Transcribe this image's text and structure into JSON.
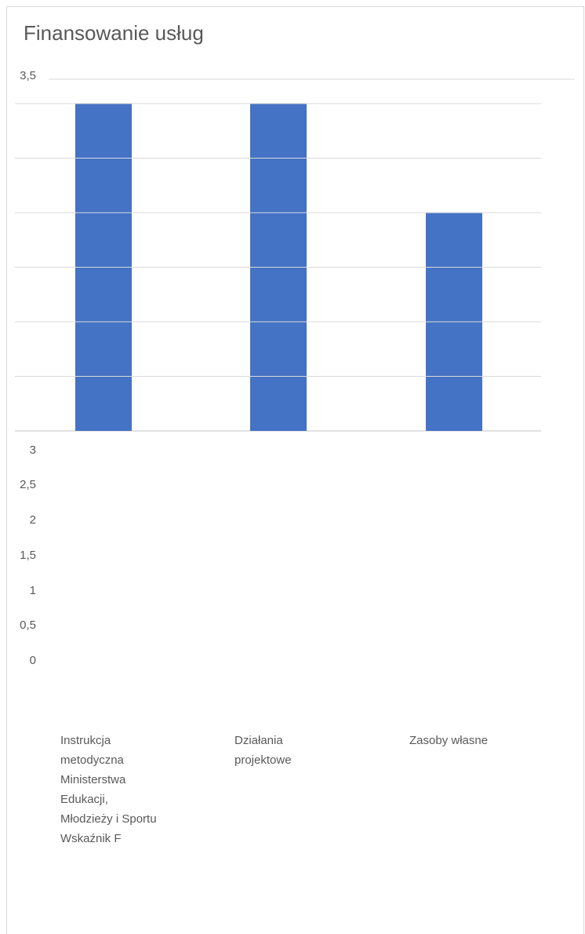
{
  "chart_data": {
    "type": "bar",
    "title": "Finansowanie usług",
    "categories": [
      "Instrukcja metodyczna Ministerstwa Edukacji, Młodzieży i Sportu Wskaźnik F",
      "Działania projektowe",
      "Zasoby własne"
    ],
    "series": [
      {
        "values": [
          3,
          3,
          2
        ]
      }
    ],
    "ylim": [
      0,
      3.5
    ],
    "y_ticks": [
      "3,5",
      "3",
      "2,5",
      "2",
      "1,5",
      "1",
      "0,5",
      "0"
    ],
    "category_label_lines": [
      [
        "Instrukcja",
        "metodyczna",
        "Ministerstwa",
        "Edukacji,",
        "Młodzieży i Sportu",
        "Wskaźnik F"
      ],
      [
        "Działania",
        "projektowe"
      ],
      [
        "Zasoby własne"
      ]
    ],
    "bar_color": "#4472C4",
    "grid": true,
    "gridline_color": "#d9d9d9"
  }
}
